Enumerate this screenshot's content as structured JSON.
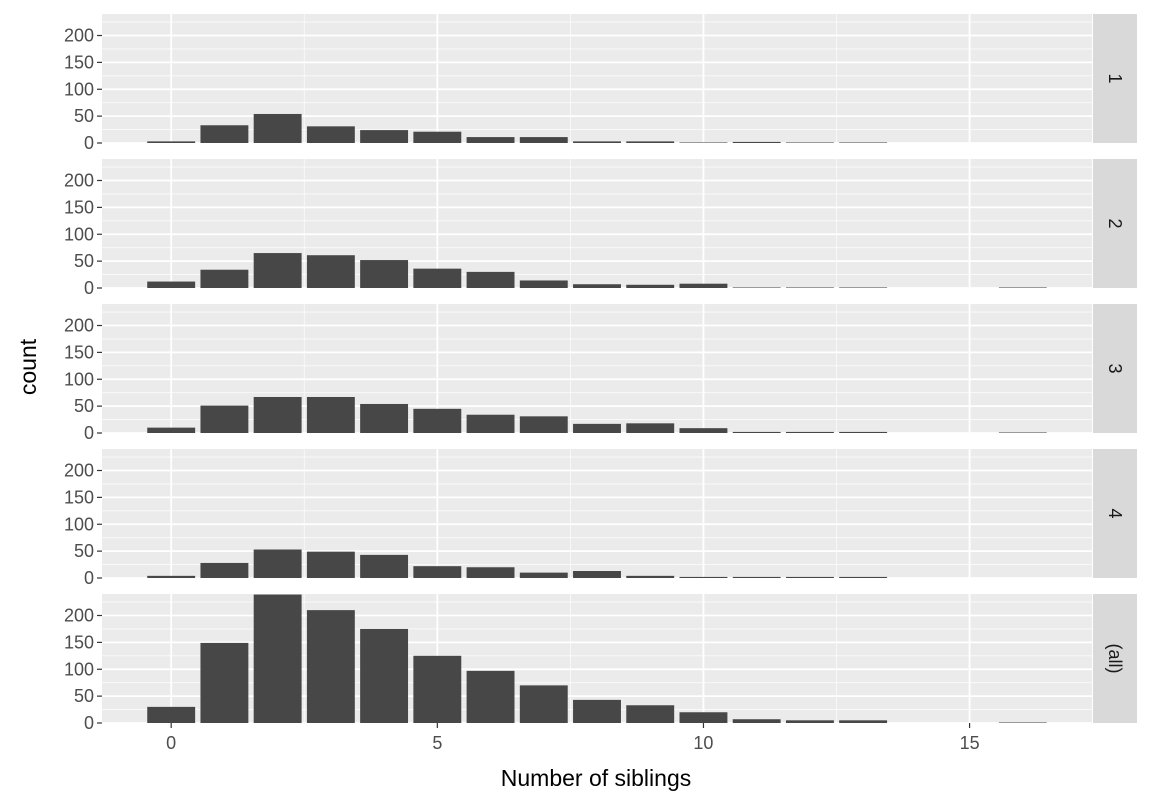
{
  "chart_data": {
    "type": "bar",
    "layout": "faceted-rows",
    "xlabel": "Number of siblings",
    "ylabel": "count",
    "x": [
      0,
      1,
      2,
      3,
      4,
      5,
      6,
      7,
      8,
      9,
      10,
      11,
      12,
      13,
      16
    ],
    "xlim": [
      -1.3,
      17.3
    ],
    "ylim": [
      0,
      240
    ],
    "x_ticks": [
      0,
      5,
      10,
      15
    ],
    "y_ticks": [
      0,
      50,
      100,
      150,
      200
    ],
    "grid": true,
    "legend": "none",
    "facets": [
      {
        "label": "1",
        "values": [
          3,
          33,
          54,
          31,
          24,
          21,
          11,
          11,
          3,
          3,
          1,
          2,
          1,
          1,
          0
        ]
      },
      {
        "label": "2",
        "values": [
          12,
          34,
          65,
          61,
          52,
          36,
          30,
          14,
          7,
          6,
          8,
          1,
          1,
          1,
          1
        ]
      },
      {
        "label": "3",
        "values": [
          10,
          51,
          67,
          67,
          54,
          45,
          34,
          31,
          17,
          18,
          9,
          2,
          2,
          2,
          1
        ]
      },
      {
        "label": "4",
        "values": [
          4,
          28,
          53,
          49,
          43,
          22,
          20,
          10,
          13,
          4,
          2,
          2,
          2,
          2,
          0
        ]
      },
      {
        "label": "(all)",
        "values": [
          30,
          149,
          239,
          210,
          175,
          125,
          97,
          70,
          43,
          33,
          20,
          7,
          5,
          5,
          1
        ]
      }
    ],
    "colors": {
      "bar": "#474747",
      "panel": "#ebebeb",
      "grid_major": "#ffffff",
      "strip": "#d9d9d9",
      "tick": "#333333"
    }
  }
}
